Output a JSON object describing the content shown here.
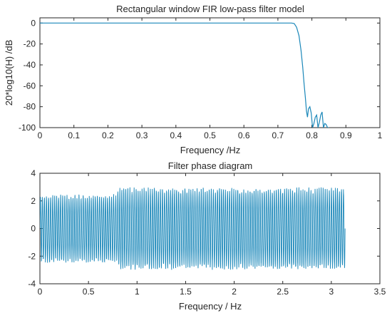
{
  "chart_data": [
    {
      "type": "line",
      "title": "Rectangular window FIR low-pass filter model",
      "xlabel": "Frequency /Hz",
      "ylabel": "20*log10(H) /dB",
      "xlim": [
        0,
        1
      ],
      "ylim": [
        -100,
        5
      ],
      "xticks": [
        "0",
        "0.1",
        "0.2",
        "0.3",
        "0.4",
        "0.5",
        "0.6",
        "0.7",
        "0.8",
        "0.9",
        "1"
      ],
      "yticks": [
        "0",
        "-20",
        "-40",
        "-60",
        "-80",
        "-100"
      ],
      "line_color": "#1a87b9",
      "grid": false,
      "series": [
        {
          "x": [
            0,
            0.74,
            0.748,
            0.755,
            0.762,
            0.768,
            0.773,
            0.777,
            0.781,
            0.784,
            0.787,
            0.79,
            0.794,
            0.798,
            0.802,
            0.806,
            0.81,
            0.814,
            0.818,
            0.822,
            0.826,
            0.83,
            0.834,
            0.838,
            0.842,
            0.846,
            0.85
          ],
          "y": [
            0,
            0,
            -0.5,
            -4,
            -12,
            -26,
            -42,
            -58,
            -72,
            -84,
            -90,
            -82,
            -80,
            -86,
            -100,
            -96,
            -90,
            -88,
            -100,
            -95,
            -88,
            -85,
            -100,
            -96,
            -97,
            -100,
            -100
          ]
        }
      ]
    },
    {
      "type": "line",
      "title": "Filter phase diagram",
      "xlabel": "Frequency / Hz",
      "ylabel": "",
      "xlim": [
        0,
        3.5
      ],
      "ylim": [
        -4,
        4
      ],
      "xticks": [
        "0",
        "0.5",
        "1",
        "1.5",
        "2",
        "2.5",
        "3",
        "3.5"
      ],
      "yticks": [
        "4",
        "2",
        "0",
        "-2",
        "-4"
      ],
      "line_color": "#1a87b9",
      "grid": false,
      "series": [
        {
          "x_range": [
            0,
            3.1416
          ],
          "n_cycles": 150,
          "amplitude_first_part": 2.5,
          "amplitude_second_part": 3.0,
          "transition_x": 0.8
        }
      ]
    }
  ]
}
